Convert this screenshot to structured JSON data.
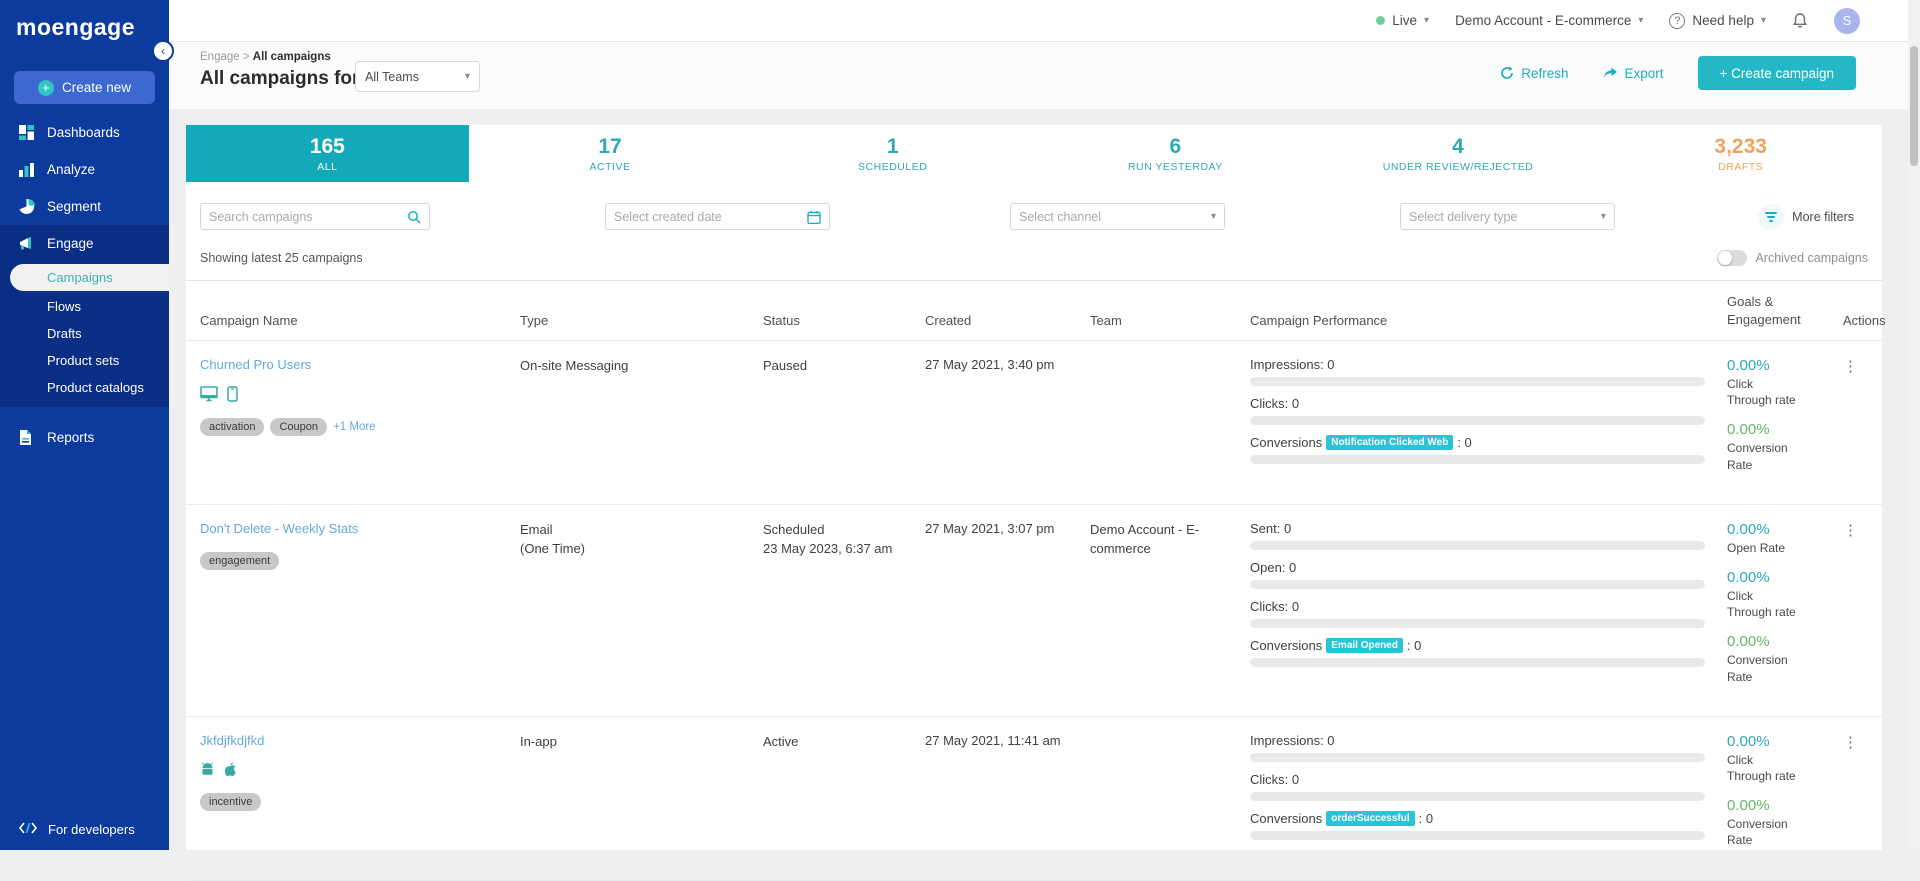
{
  "colors": {
    "accent_teal": "#1cafbf",
    "tab_teal": "#14a9b8",
    "drafts_orange": "#eba55c",
    "sidebar_blue": "#0d3a9d",
    "badge_cyan": "#29c5d6",
    "goal_green": "#67b56b",
    "link_blue": "#64a9da"
  },
  "sidebar": {
    "logo": "moengage",
    "create_new": "Create new",
    "items_top": [
      {
        "id": "dashboards",
        "label": "Dashboards",
        "icon": "dashboards-icon"
      },
      {
        "id": "analyze",
        "label": "Analyze",
        "icon": "analyze-icon"
      },
      {
        "id": "segment",
        "label": "Segment",
        "icon": "segment-icon"
      }
    ],
    "engage": {
      "label": "Engage",
      "icon": "engage-icon",
      "children": [
        {
          "id": "campaigns",
          "label": "Campaigns",
          "active": true
        },
        {
          "id": "flows",
          "label": "Flows",
          "active": false
        },
        {
          "id": "drafts",
          "label": "Drafts",
          "active": false
        },
        {
          "id": "product-sets",
          "label": "Product sets",
          "active": false
        },
        {
          "id": "product-catalogs",
          "label": "Product catalogs",
          "active": false
        }
      ]
    },
    "reports": "Reports",
    "for_developers": "For developers"
  },
  "topbar": {
    "live_label": "Live",
    "account_label": "Demo Account - E-commerce",
    "help_label": "Need help",
    "avatar_initial": "S"
  },
  "header": {
    "breadcrumb_parent": "Engage",
    "breadcrumb_sep": ">",
    "breadcrumb_current": "All campaigns",
    "title": "All campaigns for",
    "team_filter_value": "All Teams",
    "refresh_label": "Refresh",
    "export_label": "Export",
    "create_campaign_label": "+ Create campaign"
  },
  "stats": [
    {
      "value": "165",
      "label": "ALL",
      "state": "active"
    },
    {
      "value": "17",
      "label": "ACTIVE",
      "state": "normal"
    },
    {
      "value": "1",
      "label": "SCHEDULED",
      "state": "normal"
    },
    {
      "value": "6",
      "label": "RUN YESTERDAY",
      "state": "normal"
    },
    {
      "value": "4",
      "label": "UNDER REVIEW/REJECTED",
      "state": "normal"
    },
    {
      "value": "3,233",
      "label": "DRAFTS",
      "state": "drafts"
    }
  ],
  "filters": {
    "search_placeholder": "Search campaigns",
    "created_date_placeholder": "Select created date",
    "channel_placeholder": "Select channel",
    "delivery_placeholder": "Select delivery type",
    "more_filters_label": "More filters"
  },
  "list": {
    "showing_text": "Showing latest 25 campaigns",
    "archived_label": "Archived campaigns"
  },
  "table": {
    "headers": [
      "Campaign Name",
      "Type",
      "Status",
      "Created",
      "Team",
      "Campaign Performance",
      "Goals & Engagement",
      "Actions"
    ],
    "rows": [
      {
        "name": "Churned Pro Users",
        "platforms": [
          "desktop",
          "mobile"
        ],
        "tags": [
          "activation",
          "Coupon"
        ],
        "more_tag": "+1 More",
        "type_lines": [
          "On-site Messaging"
        ],
        "status_lines": [
          "Paused"
        ],
        "created": "27 May 2021, 3:40 pm",
        "team_lines": [],
        "performance": [
          {
            "label": "Impressions",
            "value": "0"
          },
          {
            "label": "Clicks",
            "value": "0"
          },
          {
            "label": "Conversions",
            "badge": "Notification Clicked Web",
            "value": "0"
          }
        ],
        "goals": [
          {
            "pct": "0.00%",
            "label": "Click Through rate",
            "color": "teal"
          },
          {
            "pct": "0.00%",
            "label": "Conversion Rate",
            "color": "green"
          }
        ]
      },
      {
        "name": "Don't Delete - Weekly Stats",
        "platforms": [],
        "tags": [
          "engagement"
        ],
        "more_tag": "",
        "type_lines": [
          "Email",
          "(One Time)"
        ],
        "status_lines": [
          "Scheduled",
          "23 May 2023, 6:37 am"
        ],
        "created": "27 May 2021, 3:07 pm",
        "team_lines": [
          "Demo Account - E-",
          "commerce"
        ],
        "performance": [
          {
            "label": "Sent",
            "value": "0"
          },
          {
            "label": "Open",
            "value": "0"
          },
          {
            "label": "Clicks",
            "value": "0"
          },
          {
            "label": "Conversions",
            "badge": "Email Opened",
            "value": "0"
          }
        ],
        "goals": [
          {
            "pct": "0.00%",
            "label": "Open Rate",
            "color": "teal"
          },
          {
            "pct": "0.00%",
            "label": "Click Through rate",
            "color": "teal"
          },
          {
            "pct": "0.00%",
            "label": "Conversion Rate",
            "color": "green"
          }
        ]
      },
      {
        "name": "Jkfdjfkdjfkd",
        "platforms": [
          "android",
          "apple"
        ],
        "tags": [
          "incentive"
        ],
        "more_tag": "",
        "type_lines": [
          "In-app"
        ],
        "status_lines": [
          "Active"
        ],
        "created": "27 May 2021, 11:41 am",
        "team_lines": [],
        "performance": [
          {
            "label": "Impressions",
            "value": "0"
          },
          {
            "label": "Clicks",
            "value": "0"
          },
          {
            "label": "Conversions",
            "badge": "orderSuccessful",
            "value": "0"
          }
        ],
        "goals": [
          {
            "pct": "0.00%",
            "label": "Click Through rate",
            "color": "teal"
          },
          {
            "pct": "0.00%",
            "label": "Conversion Rate",
            "color": "green"
          }
        ]
      }
    ]
  }
}
